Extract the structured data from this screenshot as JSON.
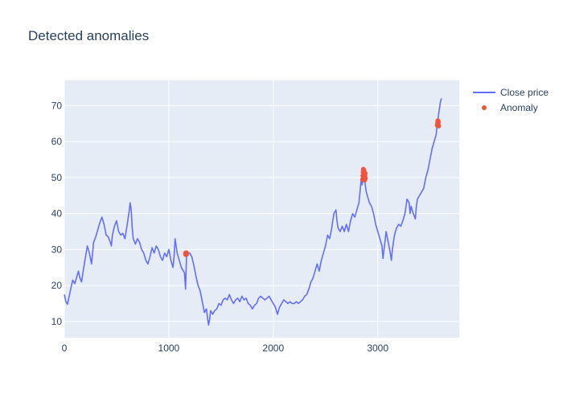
{
  "chart_data": {
    "type": "line",
    "title": "Detected anomalies",
    "xlim": [
      0,
      3780
    ],
    "ylim": [
      5.5,
      77
    ],
    "x_ticks": [
      0,
      1000,
      2000,
      3000
    ],
    "y_ticks": [
      10,
      20,
      30,
      40,
      50,
      60,
      70
    ],
    "grid": true,
    "legend_position": "top-right",
    "series": [
      {
        "name": "Close price",
        "mode": "line",
        "color": "#636efa",
        "points": [
          [
            0,
            17.5
          ],
          [
            15,
            15.5
          ],
          [
            30,
            14.8
          ],
          [
            50,
            17.5
          ],
          [
            65,
            19.5
          ],
          [
            80,
            21.5
          ],
          [
            100,
            20.5
          ],
          [
            120,
            22.5
          ],
          [
            135,
            24
          ],
          [
            150,
            22
          ],
          [
            165,
            21
          ],
          [
            180,
            24
          ],
          [
            200,
            27.5
          ],
          [
            220,
            31
          ],
          [
            240,
            29
          ],
          [
            260,
            26
          ],
          [
            280,
            32
          ],
          [
            300,
            33.5
          ],
          [
            320,
            35.5
          ],
          [
            340,
            37.5
          ],
          [
            360,
            39
          ],
          [
            380,
            37
          ],
          [
            400,
            34
          ],
          [
            420,
            33.5
          ],
          [
            440,
            32
          ],
          [
            450,
            31
          ],
          [
            460,
            34
          ],
          [
            480,
            36.5
          ],
          [
            500,
            38
          ],
          [
            520,
            35
          ],
          [
            540,
            34
          ],
          [
            560,
            34.5
          ],
          [
            580,
            33
          ],
          [
            600,
            36.5
          ],
          [
            620,
            40.5
          ],
          [
            630,
            43
          ],
          [
            640,
            41
          ],
          [
            650,
            36
          ],
          [
            660,
            33
          ],
          [
            680,
            31.5
          ],
          [
            700,
            33
          ],
          [
            720,
            32
          ],
          [
            740,
            30
          ],
          [
            760,
            29
          ],
          [
            780,
            27
          ],
          [
            800,
            26
          ],
          [
            820,
            28
          ],
          [
            840,
            30.5
          ],
          [
            860,
            29
          ],
          [
            880,
            31
          ],
          [
            900,
            30
          ],
          [
            920,
            28
          ],
          [
            940,
            27
          ],
          [
            960,
            29
          ],
          [
            980,
            28
          ],
          [
            1000,
            30
          ],
          [
            1020,
            27
          ],
          [
            1040,
            25
          ],
          [
            1050,
            28
          ],
          [
            1060,
            33
          ],
          [
            1070,
            31
          ],
          [
            1080,
            29
          ],
          [
            1100,
            27
          ],
          [
            1120,
            25
          ],
          [
            1140,
            24
          ],
          [
            1150,
            23.5
          ],
          [
            1160,
            19
          ],
          [
            1170,
            28.5
          ],
          [
            1180,
            29
          ],
          [
            1200,
            29
          ],
          [
            1220,
            28
          ],
          [
            1240,
            25.5
          ],
          [
            1260,
            22.5
          ],
          [
            1280,
            20
          ],
          [
            1300,
            18.5
          ],
          [
            1320,
            15.5
          ],
          [
            1340,
            12.5
          ],
          [
            1360,
            13.5
          ],
          [
            1370,
            11
          ],
          [
            1380,
            9
          ],
          [
            1390,
            10.5
          ],
          [
            1400,
            13
          ],
          [
            1420,
            12
          ],
          [
            1440,
            13
          ],
          [
            1460,
            13.5
          ],
          [
            1480,
            15
          ],
          [
            1500,
            14.5
          ],
          [
            1520,
            16
          ],
          [
            1540,
            16.5
          ],
          [
            1560,
            16
          ],
          [
            1580,
            17.5
          ],
          [
            1600,
            16
          ],
          [
            1620,
            15
          ],
          [
            1640,
            16
          ],
          [
            1660,
            16.5
          ],
          [
            1680,
            15.5
          ],
          [
            1700,
            17
          ],
          [
            1720,
            16
          ],
          [
            1740,
            16.5
          ],
          [
            1760,
            15
          ],
          [
            1780,
            14.5
          ],
          [
            1800,
            13.5
          ],
          [
            1820,
            14.5
          ],
          [
            1840,
            15
          ],
          [
            1860,
            16.5
          ],
          [
            1880,
            17
          ],
          [
            1900,
            16.5
          ],
          [
            1920,
            16
          ],
          [
            1940,
            16.5
          ],
          [
            1960,
            17
          ],
          [
            1980,
            16
          ],
          [
            2000,
            15
          ],
          [
            2020,
            14
          ],
          [
            2040,
            12
          ],
          [
            2060,
            14
          ],
          [
            2080,
            15
          ],
          [
            2100,
            16
          ],
          [
            2120,
            15.5
          ],
          [
            2140,
            15
          ],
          [
            2160,
            15.5
          ],
          [
            2180,
            15
          ],
          [
            2200,
            15
          ],
          [
            2220,
            15.5
          ],
          [
            2240,
            15
          ],
          [
            2260,
            15.5
          ],
          [
            2280,
            16
          ],
          [
            2300,
            17
          ],
          [
            2320,
            17.5
          ],
          [
            2340,
            19
          ],
          [
            2360,
            21
          ],
          [
            2380,
            22
          ],
          [
            2400,
            24
          ],
          [
            2420,
            26
          ],
          [
            2440,
            24
          ],
          [
            2460,
            27
          ],
          [
            2480,
            29
          ],
          [
            2500,
            31
          ],
          [
            2520,
            34
          ],
          [
            2540,
            33
          ],
          [
            2560,
            36
          ],
          [
            2580,
            40
          ],
          [
            2600,
            41
          ],
          [
            2610,
            38
          ],
          [
            2620,
            36
          ],
          [
            2640,
            35
          ],
          [
            2660,
            36.5
          ],
          [
            2680,
            35
          ],
          [
            2700,
            37
          ],
          [
            2720,
            35
          ],
          [
            2740,
            38
          ],
          [
            2760,
            40
          ],
          [
            2780,
            39
          ],
          [
            2800,
            41
          ],
          [
            2820,
            43
          ],
          [
            2840,
            49
          ],
          [
            2850,
            48
          ],
          [
            2860,
            50
          ],
          [
            2870,
            51
          ],
          [
            2880,
            48
          ],
          [
            2890,
            46
          ],
          [
            2900,
            45
          ],
          [
            2920,
            43
          ],
          [
            2940,
            42
          ],
          [
            2960,
            40
          ],
          [
            2980,
            37
          ],
          [
            3000,
            35
          ],
          [
            3020,
            33
          ],
          [
            3040,
            31
          ],
          [
            3050,
            27.5
          ],
          [
            3060,
            30
          ],
          [
            3080,
            35
          ],
          [
            3100,
            32
          ],
          [
            3120,
            29
          ],
          [
            3130,
            27
          ],
          [
            3140,
            30
          ],
          [
            3160,
            34
          ],
          [
            3180,
            36
          ],
          [
            3200,
            37
          ],
          [
            3220,
            36.5
          ],
          [
            3240,
            38
          ],
          [
            3260,
            40
          ],
          [
            3280,
            44
          ],
          [
            3300,
            43
          ],
          [
            3310,
            40
          ],
          [
            3320,
            42
          ],
          [
            3340,
            40
          ],
          [
            3360,
            38.5
          ],
          [
            3370,
            42
          ],
          [
            3380,
            44
          ],
          [
            3400,
            45
          ],
          [
            3420,
            46
          ],
          [
            3440,
            47
          ],
          [
            3460,
            50
          ],
          [
            3480,
            52
          ],
          [
            3500,
            55
          ],
          [
            3520,
            58
          ],
          [
            3540,
            60
          ],
          [
            3560,
            62
          ],
          [
            3570,
            65
          ],
          [
            3580,
            67
          ],
          [
            3590,
            69
          ],
          [
            3600,
            71
          ],
          [
            3610,
            72
          ]
        ]
      },
      {
        "name": "Anomaly",
        "mode": "markers",
        "color": "#ef553b",
        "points": [
          [
            1160,
            29
          ],
          [
            1162,
            28.6
          ],
          [
            1165,
            28.8
          ],
          [
            1168,
            29.1
          ],
          [
            1170,
            28.7
          ],
          [
            2855,
            49.5
          ],
          [
            2858,
            50.5
          ],
          [
            2860,
            51.5
          ],
          [
            2862,
            52.3
          ],
          [
            2864,
            51.8
          ],
          [
            2866,
            50.8
          ],
          [
            2868,
            52
          ],
          [
            2870,
            51
          ],
          [
            2872,
            50
          ],
          [
            2875,
            49.3
          ],
          [
            2877,
            50.6
          ],
          [
            2879,
            51.2
          ],
          [
            2881,
            49.8
          ],
          [
            3570,
            64.5
          ],
          [
            3573,
            65.3
          ],
          [
            3575,
            65.8
          ],
          [
            3578,
            64.8
          ],
          [
            3580,
            65.5
          ],
          [
            3583,
            64.3
          ]
        ]
      }
    ]
  }
}
